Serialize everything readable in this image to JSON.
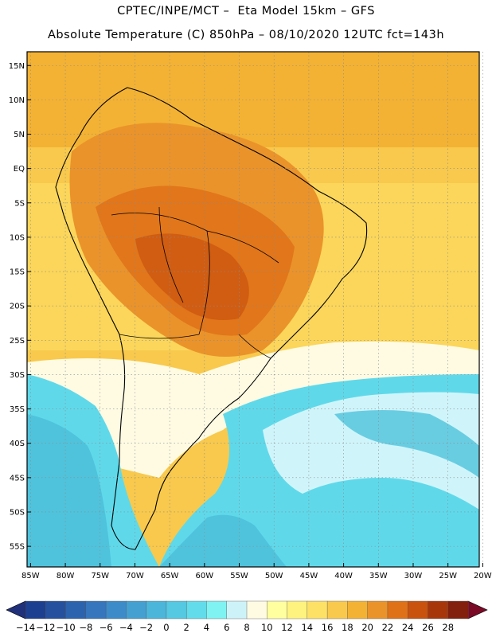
{
  "title": {
    "line1": "CPTEC/INPE/MCT –  Eta Model 15km – GFS",
    "line2": "Absolute Temperature (C) 850hPa – 08/10/2020 12UTC fct=143h"
  },
  "axes": {
    "lat_labels": [
      "15N",
      "10N",
      "5N",
      "EQ",
      "5S",
      "10S",
      "15S",
      "20S",
      "25S",
      "30S",
      "35S",
      "40S",
      "45S",
      "50S",
      "55S"
    ],
    "lat_values": [
      15,
      10,
      5,
      0,
      -5,
      -10,
      -15,
      -20,
      -25,
      -30,
      -35,
      -40,
      -45,
      -50,
      -55
    ],
    "lon_labels": [
      "85W",
      "80W",
      "75W",
      "70W",
      "65W",
      "60W",
      "55W",
      "50W",
      "45W",
      "40W",
      "35W",
      "30W",
      "25W",
      "20W"
    ],
    "lon_values": [
      -85,
      -80,
      -75,
      -70,
      -65,
      -60,
      -55,
      -50,
      -45,
      -40,
      -35,
      -30,
      -25,
      -20
    ],
    "lat_range": [
      -58,
      17
    ],
    "lon_range": [
      -85.5,
      -20.5
    ],
    "grid": "dotted"
  },
  "colorbar": {
    "labels": [
      "-14",
      "-12",
      "-10",
      "-8",
      "-6",
      "-4",
      "-2",
      "0",
      "2",
      "4",
      "6",
      "8",
      "10",
      "12",
      "14",
      "16",
      "18",
      "20",
      "22",
      "24",
      "26",
      "28"
    ],
    "colors": [
      "#1d3f8f",
      "#24509e",
      "#2c63ae",
      "#3576bd",
      "#3d8bc9",
      "#45a0d2",
      "#4cb6da",
      "#55c8e2",
      "#62dcea",
      "#7ff2f2",
      "#cdf3f9",
      "#fffbe3",
      "#ffff9f",
      "#fef37e",
      "#fde066",
      "#f8c94c",
      "#f3b233",
      "#ea932a",
      "#df7118",
      "#c9520f",
      "#a8360b",
      "#821f0d"
    ],
    "low_end_color": "#21307a",
    "high_end_color": "#7a0a26"
  },
  "legend_colors": {
    "ocean_cold": "#4fc3dc",
    "ocean_mid": "#5fd9ea",
    "ocean_pale": "#cff5fb",
    "warm": "#f8c94c",
    "hot": "#ea932a"
  }
}
